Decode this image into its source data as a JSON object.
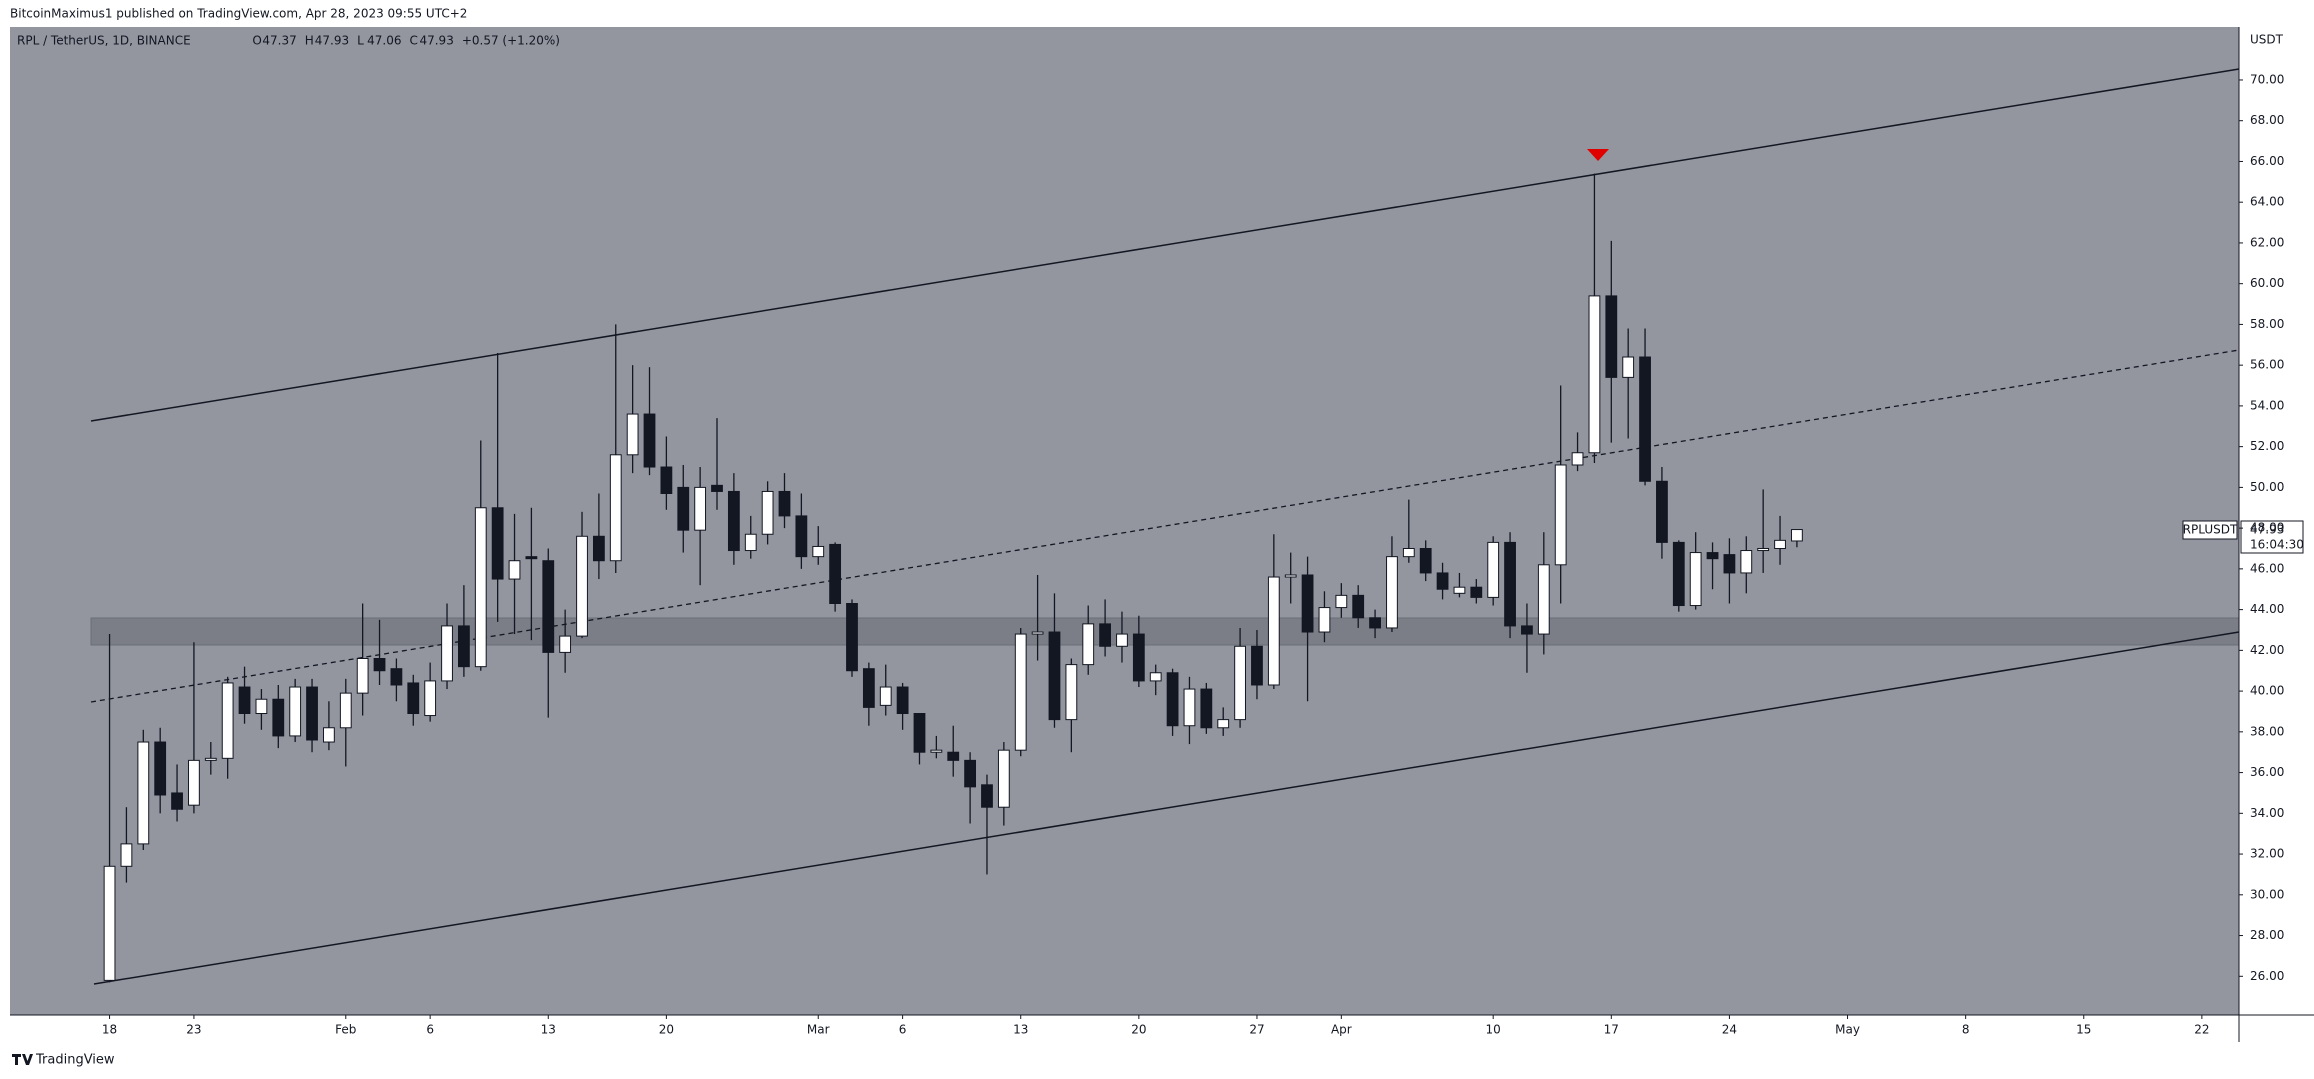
{
  "chart_data": {
    "type": "candlestick",
    "publisher": "BitcoinMaximus1 published on TradingView.com, Apr 28, 2023 09:55 UTC+2",
    "symbol": "RPL / TetherUS, 1D, BINANCE",
    "ohlc": [
      {
        "key": "O",
        "value": 47.37
      },
      {
        "key": "H",
        "value": 47.93
      },
      {
        "key": "L",
        "value": 47.06
      },
      {
        "key": "C",
        "value": 47.93
      }
    ],
    "change": "+0.57 (+1.20%)",
    "currency": "USDT",
    "symbol_tag": "RPLUSDT",
    "last_price": 47.93,
    "countdown": "16:04:30",
    "brand": "TradingView",
    "up_color": "#ffffff",
    "down_color": "#131722",
    "wick_color": "#131722",
    "open": [
      25.8,
      31.4,
      32.5,
      37.5,
      35.0,
      34.4,
      36.6,
      36.7,
      40.2,
      38.9,
      39.6,
      37.8,
      40.2,
      37.5,
      38.2,
      39.9,
      41.6,
      41.1,
      40.4,
      38.8,
      40.5,
      43.2,
      41.2,
      49.0,
      45.5,
      46.6,
      46.4,
      41.9,
      42.7,
      47.6,
      46.4,
      51.6,
      53.6,
      51.0,
      50.0,
      47.9,
      50.1,
      49.8,
      46.9,
      47.7,
      49.8,
      48.6,
      46.6,
      47.2,
      44.3,
      41.1,
      39.3,
      40.2,
      38.9,
      37.0,
      37.0,
      36.6,
      35.4,
      34.3,
      37.1,
      42.8,
      42.9,
      38.6,
      41.3,
      43.3,
      42.2,
      42.8,
      40.5,
      40.9,
      38.3,
      40.1,
      38.2,
      38.6,
      42.2,
      40.3,
      45.6,
      45.7,
      42.9,
      44.1,
      44.7,
      43.6,
      43.1,
      46.6,
      47.0,
      45.8,
      44.8,
      45.1,
      44.6,
      47.3,
      43.2,
      42.8,
      46.2,
      51.1,
      51.7,
      59.4,
      55.4,
      56.4,
      50.3,
      47.3,
      44.2,
      46.8,
      46.7,
      45.8,
      46.9,
      47.0,
      47.37
    ],
    "high": [
      42.8,
      34.3,
      38.1,
      38.2,
      36.4,
      42.4,
      37.5,
      40.7,
      41.2,
      40.1,
      40.3,
      40.6,
      40.6,
      39.5,
      40.6,
      44.3,
      43.5,
      41.6,
      40.8,
      41.4,
      44.3,
      45.2,
      52.3,
      56.6,
      48.7,
      49.0,
      47.0,
      44.0,
      48.8,
      49.7,
      58.0,
      56.0,
      55.9,
      52.5,
      51.1,
      51.0,
      53.4,
      50.7,
      48.6,
      50.3,
      50.7,
      49.7,
      48.1,
      47.3,
      44.5,
      41.4,
      41.3,
      40.4,
      38.9,
      37.8,
      38.3,
      37.0,
      35.9,
      37.5,
      43.1,
      45.7,
      44.8,
      41.6,
      44.2,
      44.5,
      43.9,
      43.7,
      41.3,
      41.1,
      40.7,
      40.4,
      39.2,
      43.1,
      43.0,
      47.7,
      46.8,
      46.6,
      44.9,
      45.3,
      45.2,
      44.0,
      47.6,
      49.4,
      47.4,
      46.3,
      45.8,
      45.5,
      47.6,
      47.8,
      44.3,
      47.8,
      55.0,
      52.7,
      65.4,
      62.1,
      57.8,
      57.8,
      51.0,
      47.4,
      47.8,
      47.3,
      47.5,
      47.6,
      49.9,
      48.6,
      47.93
    ],
    "low": [
      25.7,
      30.6,
      32.2,
      34.0,
      33.6,
      34.0,
      35.9,
      35.7,
      38.4,
      38.1,
      37.2,
      37.5,
      37.0,
      37.1,
      36.3,
      38.8,
      40.3,
      39.5,
      38.3,
      38.5,
      40.1,
      40.7,
      41.0,
      43.4,
      42.8,
      42.5,
      38.7,
      40.9,
      42.6,
      45.5,
      45.8,
      50.7,
      50.6,
      48.9,
      46.8,
      45.2,
      48.9,
      46.2,
      46.5,
      47.2,
      48.0,
      46.0,
      46.2,
      43.9,
      40.7,
      38.3,
      38.8,
      38.1,
      36.4,
      36.7,
      35.8,
      33.5,
      31.0,
      33.4,
      36.8,
      41.5,
      38.2,
      37.0,
      40.8,
      41.7,
      41.4,
      40.2,
      39.8,
      37.8,
      37.4,
      37.9,
      37.8,
      38.2,
      39.6,
      40.1,
      44.3,
      39.5,
      42.4,
      43.6,
      43.1,
      42.6,
      42.9,
      46.3,
      45.4,
      44.5,
      44.6,
      44.3,
      44.2,
      42.6,
      40.9,
      41.8,
      44.3,
      50.8,
      51.2,
      52.2,
      52.4,
      50.1,
      46.5,
      43.9,
      44.0,
      45.0,
      44.3,
      44.8,
      45.8,
      46.2,
      47.06
    ],
    "close": [
      31.4,
      32.5,
      37.5,
      34.9,
      34.2,
      36.6,
      36.7,
      40.4,
      38.9,
      39.6,
      37.8,
      40.2,
      37.6,
      38.2,
      39.9,
      41.6,
      41.0,
      40.3,
      38.9,
      40.5,
      43.2,
      41.2,
      49.0,
      45.5,
      46.4,
      46.5,
      41.9,
      42.7,
      47.6,
      46.4,
      51.6,
      53.6,
      51.0,
      49.7,
      47.9,
      50.0,
      49.8,
      46.9,
      47.7,
      49.8,
      48.6,
      46.6,
      47.1,
      44.3,
      41.0,
      39.2,
      40.2,
      38.9,
      37.0,
      37.1,
      36.6,
      35.3,
      34.3,
      37.1,
      42.8,
      42.9,
      38.6,
      41.3,
      43.3,
      42.2,
      42.8,
      40.5,
      40.9,
      38.3,
      40.1,
      38.2,
      38.6,
      42.2,
      40.3,
      45.6,
      45.7,
      42.9,
      44.1,
      44.7,
      43.6,
      43.1,
      46.6,
      47.0,
      45.8,
      45.0,
      45.1,
      44.6,
      47.3,
      43.2,
      42.8,
      46.2,
      51.1,
      51.7,
      59.4,
      55.4,
      56.4,
      50.3,
      47.3,
      44.2,
      46.8,
      46.5,
      45.8,
      46.9,
      47.0,
      47.4,
      47.93
    ],
    "xlim": [
      -5.9,
      126.2
    ],
    "xticks": [
      {
        "value": 0,
        "label": "18"
      },
      {
        "value": 5,
        "label": "23"
      },
      {
        "value": 14,
        "label": "Feb"
      },
      {
        "value": 19,
        "label": "6"
      },
      {
        "value": 26,
        "label": "13"
      },
      {
        "value": 33,
        "label": "20"
      },
      {
        "value": 42,
        "label": "Mar"
      },
      {
        "value": 47,
        "label": "6"
      },
      {
        "value": 54,
        "label": "13"
      },
      {
        "value": 61,
        "label": "20"
      },
      {
        "value": 68,
        "label": "27"
      },
      {
        "value": 73,
        "label": "Apr"
      },
      {
        "value": 82,
        "label": "10"
      },
      {
        "value": 89,
        "label": "17"
      },
      {
        "value": 96,
        "label": "24"
      },
      {
        "value": 103,
        "label": "May"
      },
      {
        "value": 110,
        "label": "8"
      },
      {
        "value": 117,
        "label": "15"
      },
      {
        "value": 124,
        "label": "22"
      }
    ],
    "ylim": [
      24.1,
      72.6
    ],
    "yticks": [
      {
        "value": 26,
        "label": "26.00"
      },
      {
        "value": 28,
        "label": "28.00"
      },
      {
        "value": 30,
        "label": "30.00"
      },
      {
        "value": 32,
        "label": "32.00"
      },
      {
        "value": 34,
        "label": "34.00"
      },
      {
        "value": 36,
        "label": "36.00"
      },
      {
        "value": 38,
        "label": "38.00"
      },
      {
        "value": 40,
        "label": "40.00"
      },
      {
        "value": 42,
        "label": "42.00"
      },
      {
        "value": 44,
        "label": "44.00"
      },
      {
        "value": 46,
        "label": "46.00"
      },
      {
        "value": 48,
        "label": "48.00"
      },
      {
        "value": 50,
        "label": "50.00"
      },
      {
        "value": 52,
        "label": "52.00"
      },
      {
        "value": 54,
        "label": "54.00"
      },
      {
        "value": 56,
        "label": "56.00"
      },
      {
        "value": 58,
        "label": "58.00"
      },
      {
        "value": 60,
        "label": "60.00"
      },
      {
        "value": 62,
        "label": "62.00"
      },
      {
        "value": 64,
        "label": "64.00"
      },
      {
        "value": 66,
        "label": "66.00"
      },
      {
        "value": 68,
        "label": "68.00"
      },
      {
        "value": 70,
        "label": "70.00"
      }
    ]
  }
}
